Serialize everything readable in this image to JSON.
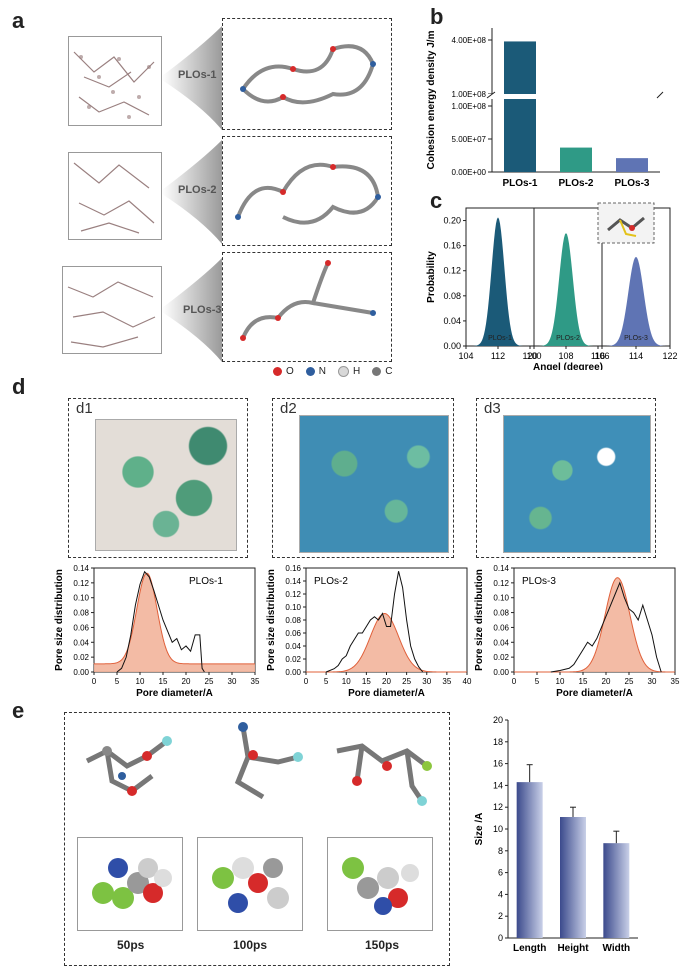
{
  "panels": {
    "a": "a",
    "b": "b",
    "c": "c",
    "d": "d",
    "e": "e"
  },
  "panel_a": {
    "labels": [
      "PLOs-1",
      "PLOs-2",
      "PLOs-3"
    ],
    "legend": [
      {
        "symbol": "O",
        "color": "#d62a2a"
      },
      {
        "symbol": "N",
        "color": "#2f5e9e"
      },
      {
        "symbol": "H",
        "color": "#d8d8d8"
      },
      {
        "symbol": "C",
        "color": "#777777"
      }
    ]
  },
  "panel_d": {
    "sub": [
      "d1",
      "d2",
      "d3"
    ]
  },
  "panel_e": {
    "times": [
      "50ps",
      "100ps",
      "150ps"
    ]
  },
  "chart_data": [
    {
      "id": "b",
      "type": "bar",
      "categories": [
        "PLOs-1",
        "PLOs-2",
        "PLOs-3"
      ],
      "values": [
        392000000,
        37000000,
        21000000
      ],
      "ylabel": "Cohesion energy density J/m",
      "yticks_lower": [
        "0.00E+00",
        "5.00E+07",
        "1.00E+08"
      ],
      "yticks_upper": [
        "1.00E+08",
        "4.00E+08"
      ],
      "broken_axis": true,
      "colors": [
        "#1b5a78",
        "#2f9a86",
        "#5f74b4"
      ]
    },
    {
      "id": "c",
      "type": "area",
      "ylabel": "Probability",
      "xlabel": "Angel (degree)",
      "yticks": [
        "0.00",
        "0.04",
        "0.08",
        "0.12",
        "0.16",
        "0.20"
      ],
      "panels": [
        {
          "name": "PLOs-1",
          "color": "#1b5a78",
          "xticks": [
            "104",
            "112",
            "120"
          ],
          "xlim": [
            104,
            121
          ],
          "peak": 112,
          "height": 0.205,
          "sigma": 1.6
        },
        {
          "name": "PLOs-2",
          "color": "#2f9a86",
          "xticks": [
            "100",
            "108",
            "116"
          ],
          "xlim": [
            100,
            117
          ],
          "peak": 108,
          "height": 0.18,
          "sigma": 1.7
        },
        {
          "name": "PLOs-3",
          "color": "#5f74b4",
          "xticks": [
            "106",
            "114",
            "122"
          ],
          "xlim": [
            106,
            122
          ],
          "peak": 114,
          "height": 0.142,
          "sigma": 1.8
        }
      ]
    },
    {
      "id": "d",
      "type": "line",
      "ylabel": "Pore size distribution",
      "xlabel": "Pore diameter/A",
      "charts": [
        {
          "name": "PLOs-1",
          "xticks": [
            "0",
            "5",
            "10",
            "15",
            "20",
            "25",
            "30",
            "35"
          ],
          "xmax": 35,
          "yticks": [
            "0.00",
            "0.02",
            "0.04",
            "0.06",
            "0.08",
            "0.10",
            "0.12",
            "0.14"
          ],
          "ymax": 0.14,
          "line": [
            [
              5,
              0
            ],
            [
              6,
              0.005
            ],
            [
              7,
              0.02
            ],
            [
              8,
              0.05
            ],
            [
              9,
              0.09
            ],
            [
              10,
              0.118
            ],
            [
              11,
              0.135
            ],
            [
              12,
              0.128
            ],
            [
              13,
              0.11
            ],
            [
              14,
              0.09
            ],
            [
              15,
              0.07
            ],
            [
              16,
              0.055
            ],
            [
              17,
              0.04
            ],
            [
              18,
              0.045
            ],
            [
              19,
              0.03
            ],
            [
              20,
              0.035
            ],
            [
              21,
              0.028
            ],
            [
              22,
              0.05
            ],
            [
              23,
              0.05
            ],
            [
              23.5,
              0.005
            ],
            [
              24,
              0
            ]
          ],
          "fit": {
            "mu": 11.5,
            "sigma": 2.2,
            "height": 0.122,
            "base": 0.011
          }
        },
        {
          "name": "PLOs-2",
          "xticks": [
            "0",
            "5",
            "10",
            "15",
            "20",
            "25",
            "30",
            "35",
            "40"
          ],
          "xmax": 40,
          "yticks": [
            "0.00",
            "0.02",
            "0.04",
            "0.06",
            "0.08",
            "0.10",
            "0.12",
            "0.14",
            "0.16"
          ],
          "ymax": 0.16,
          "line": [
            [
              5,
              0
            ],
            [
              7,
              0.005
            ],
            [
              8,
              0.01
            ],
            [
              9,
              0.02
            ],
            [
              10,
              0.025
            ],
            [
              11,
              0.04
            ],
            [
              12,
              0.05
            ],
            [
              13,
              0.06
            ],
            [
              14,
              0.06
            ],
            [
              15,
              0.07
            ],
            [
              16,
              0.08
            ],
            [
              17,
              0.085
            ],
            [
              18,
              0.08
            ],
            [
              19,
              0.09
            ],
            [
              20,
              0.07
            ],
            [
              21,
              0.07
            ],
            [
              22,
              0.12
            ],
            [
              23,
              0.155
            ],
            [
              24,
              0.13
            ],
            [
              25,
              0.08
            ],
            [
              26,
              0.04
            ],
            [
              27,
              0.02
            ],
            [
              28,
              0.008
            ],
            [
              29,
              0
            ]
          ],
          "fit": {
            "mu": 19.5,
            "sigma": 3.5,
            "height": 0.09,
            "base": 0
          }
        },
        {
          "name": "PLOs-3",
          "xticks": [
            "0",
            "5",
            "10",
            "15",
            "20",
            "25",
            "30",
            "35"
          ],
          "xmax": 35,
          "yticks": [
            "0.00",
            "0.02",
            "0.04",
            "0.06",
            "0.08",
            "0.10",
            "0.12",
            "0.14"
          ],
          "ymax": 0.14,
          "line": [
            [
              8,
              0
            ],
            [
              10,
              0.002
            ],
            [
              12,
              0.005
            ],
            [
              13,
              0.01
            ],
            [
              14,
              0.02
            ],
            [
              15,
              0.03
            ],
            [
              16,
              0.04
            ],
            [
              17,
              0.035
            ],
            [
              18,
              0.045
            ],
            [
              19,
              0.06
            ],
            [
              20,
              0.075
            ],
            [
              21,
              0.09
            ],
            [
              22,
              0.105
            ],
            [
              23,
              0.12
            ],
            [
              24,
              0.1
            ],
            [
              25,
              0.085
            ],
            [
              26,
              0.08
            ],
            [
              27,
              0.07
            ],
            [
              28,
              0.09
            ],
            [
              29,
              0.07
            ],
            [
              30,
              0.05
            ],
            [
              31,
              0.02
            ],
            [
              32,
              0
            ]
          ],
          "fit": {
            "mu": 22.5,
            "sigma": 2.7,
            "height": 0.127,
            "base": 0
          }
        }
      ]
    },
    {
      "id": "e",
      "type": "bar",
      "categories": [
        "Length",
        "Height",
        "Width"
      ],
      "values": [
        14.3,
        11.1,
        8.7
      ],
      "errors": [
        1.6,
        0.9,
        1.1
      ],
      "ylabel": "Size /A",
      "yticks": [
        "0",
        "2",
        "4",
        "6",
        "8",
        "10",
        "12",
        "14",
        "16",
        "18",
        "20"
      ],
      "ylim": [
        0,
        20
      ]
    }
  ]
}
